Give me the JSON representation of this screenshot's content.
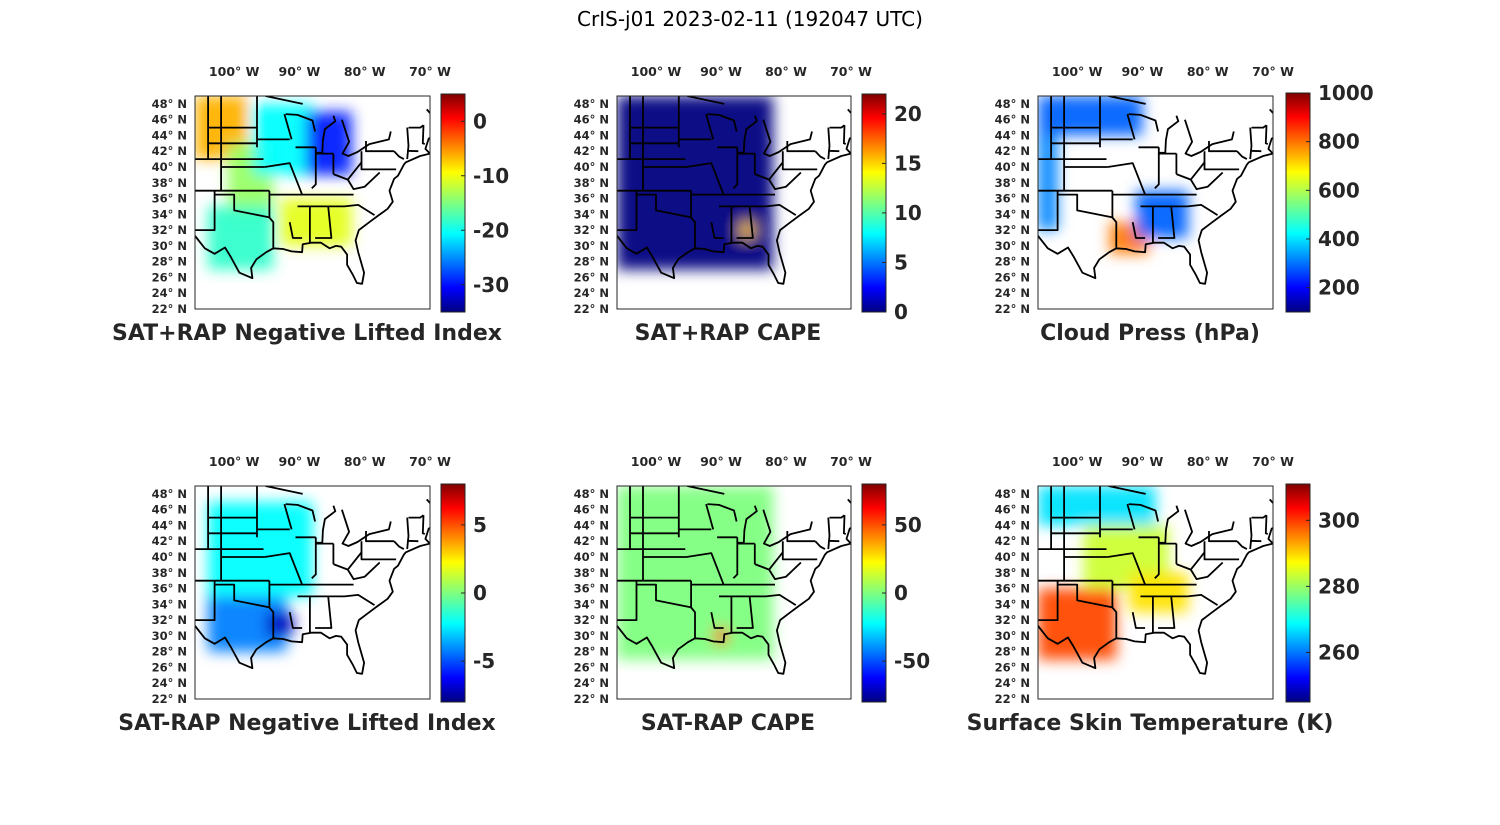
{
  "suptitle": "CrIS-j01 2023-02-11 (192047 UTC)",
  "lon_ticks": [
    "100° W",
    "90° W",
    "80° W",
    "70° W"
  ],
  "lat_ticks": [
    "48° N",
    "46° N",
    "44° N",
    "42° N",
    "40° N",
    "38° N",
    "36° N",
    "34° N",
    "32° N",
    "30° N",
    "28° N",
    "26° N",
    "24° N",
    "22° N"
  ],
  "chart_data": [
    {
      "type": "heatmap",
      "title": "SAT+RAP Negative Lifted Index",
      "colormap": "jet",
      "clim": [
        -35,
        5
      ],
      "colorbar_ticks": [
        0,
        -10,
        -20,
        -30
      ],
      "colorbar_tick_labels": [
        "0",
        "-10",
        "-20",
        "-30"
      ],
      "lon_range": [
        -106,
        -70
      ],
      "lat_range": [
        22,
        49
      ],
      "regions": [
        {
          "name": "north-plains",
          "lon": [
            -106,
            -98
          ],
          "lat": [
            41,
            49
          ],
          "value": -7
        },
        {
          "name": "great-plains",
          "lon": [
            -101,
            -94
          ],
          "lat": [
            33,
            43
          ],
          "value": -14
        },
        {
          "name": "upper-midwest",
          "lon": [
            -97,
            -88
          ],
          "lat": [
            39,
            48
          ],
          "value": -20
        },
        {
          "name": "great-lakes",
          "lon": [
            -89,
            -82
          ],
          "lat": [
            39,
            47
          ],
          "value": -29
        },
        {
          "name": "texas",
          "lon": [
            -104,
            -94
          ],
          "lat": [
            27,
            35
          ],
          "value": -18
        },
        {
          "name": "southeast",
          "lon": [
            -93,
            -82
          ],
          "lat": [
            30,
            36
          ],
          "value": -11
        }
      ]
    },
    {
      "type": "heatmap",
      "title": "SAT+RAP CAPE",
      "colormap": "jet",
      "clim": [
        0,
        22
      ],
      "colorbar_ticks": [
        20,
        15,
        10,
        5,
        0
      ],
      "colorbar_tick_labels": [
        "20",
        "15",
        "10",
        "5",
        "0"
      ],
      "lon_range": [
        -106,
        -70
      ],
      "lat_range": [
        22,
        49
      ],
      "regions": [
        {
          "name": "domain",
          "lon": [
            -106,
            -82
          ],
          "lat": [
            27,
            49
          ],
          "value": 0
        },
        {
          "name": "gulf-coast-spot",
          "lon": [
            -87,
            -85
          ],
          "lat": [
            31,
            33
          ],
          "value": 15
        }
      ]
    },
    {
      "type": "heatmap",
      "title": "Cloud Press (hPa)",
      "colormap": "jet",
      "clim": [
        100,
        1000
      ],
      "colorbar_ticks": [
        1000,
        800,
        600,
        400,
        200
      ],
      "colorbar_tick_labels": [
        "1000",
        "800",
        "600",
        "400",
        "200"
      ],
      "lon_range": [
        -106,
        -70
      ],
      "lat_range": [
        22,
        49
      ],
      "regions": [
        {
          "name": "northern-band",
          "lon": [
            -106,
            -90
          ],
          "lat": [
            44,
            49
          ],
          "value": 300
        },
        {
          "name": "west-edge",
          "lon": [
            -106,
            -103
          ],
          "lat": [
            32,
            44
          ],
          "value": 330
        },
        {
          "name": "gulf-coast",
          "lon": [
            -95,
            -89
          ],
          "lat": [
            29,
            33
          ],
          "value": 780
        },
        {
          "name": "southeast",
          "lon": [
            -91,
            -83
          ],
          "lat": [
            31,
            37
          ],
          "value": 300
        }
      ]
    },
    {
      "type": "heatmap",
      "title": "SAT-RAP Negative Lifted Index",
      "colormap": "jet",
      "clim": [
        -8,
        8
      ],
      "colorbar_ticks": [
        5,
        0,
        -5
      ],
      "colorbar_tick_labels": [
        "5",
        "0",
        "-5"
      ],
      "lon_range": [
        -106,
        -70
      ],
      "lat_range": [
        22,
        49
      ],
      "regions": [
        {
          "name": "plains",
          "lon": [
            -104,
            -88
          ],
          "lat": [
            35,
            47
          ],
          "value": -2
        },
        {
          "name": "texas",
          "lon": [
            -104,
            -92
          ],
          "lat": [
            28,
            35
          ],
          "value": -4
        },
        {
          "name": "louisiana",
          "lon": [
            -95,
            -91
          ],
          "lat": [
            30,
            33
          ],
          "value": -7
        }
      ]
    },
    {
      "type": "heatmap",
      "title": "SAT-RAP CAPE",
      "colormap": "jet",
      "clim": [
        -80,
        80
      ],
      "colorbar_ticks": [
        50,
        0,
        -50
      ],
      "colorbar_tick_labels": [
        "50",
        "0",
        "-50"
      ],
      "lon_range": [
        -106,
        -70
      ],
      "lat_range": [
        22,
        49
      ],
      "regions": [
        {
          "name": "domain",
          "lon": [
            -106,
            -82
          ],
          "lat": [
            27,
            49
          ],
          "value": 0
        },
        {
          "name": "gulf-coast-spot",
          "lon": [
            -91,
            -89
          ],
          "lat": [
            29,
            31
          ],
          "value": 50
        }
      ]
    },
    {
      "type": "heatmap",
      "title": "Surface Skin Temperature (K)",
      "colormap": "jet",
      "clim": [
        245,
        311
      ],
      "colorbar_ticks": [
        300,
        280,
        260
      ],
      "colorbar_tick_labels": [
        "300",
        "280",
        "260"
      ],
      "lon_range": [
        -106,
        -70
      ],
      "lat_range": [
        22,
        49
      ],
      "regions": [
        {
          "name": "northern-plains",
          "lon": [
            -106,
            -88
          ],
          "lat": [
            44,
            49
          ],
          "value": 268
        },
        {
          "name": "midwest",
          "lon": [
            -99,
            -86
          ],
          "lat": [
            36,
            44
          ],
          "value": 283
        },
        {
          "name": "southern-plains",
          "lon": [
            -106,
            -94
          ],
          "lat": [
            27,
            36
          ],
          "value": 298
        },
        {
          "name": "southeast",
          "lon": [
            -92,
            -83
          ],
          "lat": [
            33,
            38
          ],
          "value": 288
        }
      ]
    }
  ]
}
